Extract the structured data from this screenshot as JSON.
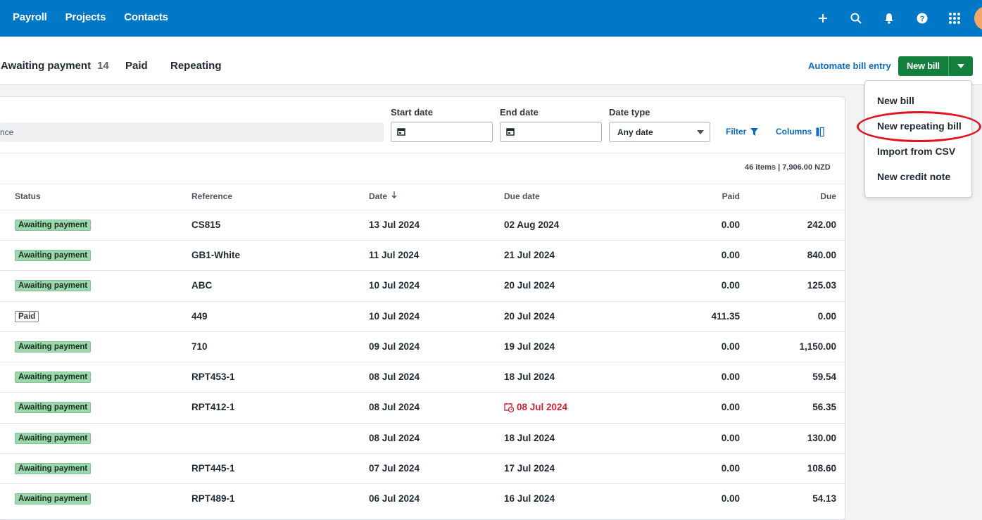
{
  "topnav": {
    "items": [
      "Payroll",
      "Projects",
      "Contacts"
    ]
  },
  "topicons": [
    "plus-icon",
    "search-icon",
    "bell-icon",
    "help-icon",
    "apps-grid-icon"
  ],
  "tabs": [
    {
      "label": "Awaiting payment",
      "count": "14"
    },
    {
      "label": "Paid"
    },
    {
      "label": "Repeating"
    }
  ],
  "actions": {
    "automate": "Automate bill entry",
    "new_bill": "New bill"
  },
  "filters": {
    "search_text": "nce",
    "start_date_label": "Start date",
    "end_date_label": "End date",
    "date_type_label": "Date type",
    "date_type_value": "Any date",
    "filter_label": "Filter",
    "columns_label": "Columns"
  },
  "summary": "46 items | 7,906.00 NZD",
  "table": {
    "headers": {
      "status": "Status",
      "reference": "Reference",
      "date": "Date",
      "due_date": "Due date",
      "paid": "Paid",
      "due": "Due"
    },
    "rows": [
      {
        "status": "Awaiting payment",
        "reference": "CS815",
        "date": "13 Jul 2024",
        "due_date": "02 Aug 2024",
        "paid": "0.00",
        "due": "242.00"
      },
      {
        "status": "Awaiting payment",
        "reference": "GB1-White",
        "date": "11 Jul 2024",
        "due_date": "21 Jul 2024",
        "paid": "0.00",
        "due": "840.00"
      },
      {
        "status": "Awaiting payment",
        "reference": "ABC",
        "date": "10 Jul 2024",
        "due_date": "20 Jul 2024",
        "paid": "0.00",
        "due": "125.03"
      },
      {
        "status": "Paid",
        "reference": "449",
        "date": "10 Jul 2024",
        "due_date": "20 Jul 2024",
        "paid": "411.35",
        "due": "0.00"
      },
      {
        "status": "Awaiting payment",
        "reference": "710",
        "date": "09 Jul 2024",
        "due_date": "19 Jul 2024",
        "paid": "0.00",
        "due": "1,150.00"
      },
      {
        "status": "Awaiting payment",
        "reference": "RPT453-1",
        "date": "08 Jul 2024",
        "due_date": "18 Jul 2024",
        "paid": "0.00",
        "due": "59.54"
      },
      {
        "status": "Awaiting payment",
        "reference": "RPT412-1",
        "date": "08 Jul 2024",
        "due_date": "08 Jul 2024",
        "paid": "0.00",
        "due": "56.35",
        "overdue": true
      },
      {
        "status": "Awaiting payment",
        "reference": "",
        "date": "08 Jul 2024",
        "due_date": "18 Jul 2024",
        "paid": "0.00",
        "due": "130.00"
      },
      {
        "status": "Awaiting payment",
        "reference": "RPT445-1",
        "date": "07 Jul 2024",
        "due_date": "17 Jul 2024",
        "paid": "0.00",
        "due": "108.60"
      },
      {
        "status": "Awaiting payment",
        "reference": "RPT489-1",
        "date": "06 Jul 2024",
        "due_date": "16 Jul 2024",
        "paid": "0.00",
        "due": "54.13"
      }
    ]
  },
  "dropdown": {
    "items": [
      "New bill",
      "New repeating bill",
      "Import from CSV",
      "New credit note"
    ]
  },
  "colors": {
    "header_bg": "#0078c8",
    "accent_green": "#12803c",
    "link_blue": "#0b6bbf",
    "overdue_red": "#d3222e",
    "badge_green": "#9ed6ae"
  }
}
